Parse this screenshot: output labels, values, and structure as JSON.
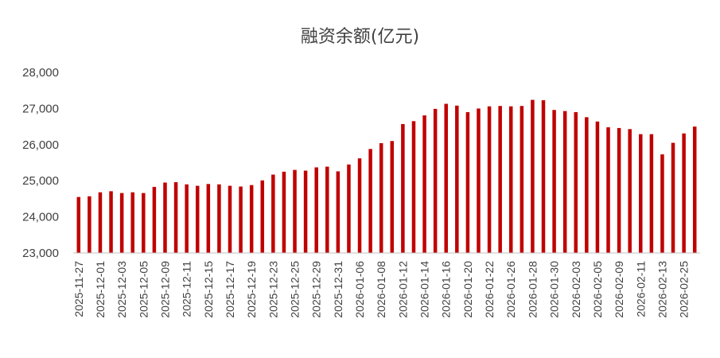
{
  "chart_data": {
    "type": "bar",
    "title": "融资余额(亿元)",
    "xlabel": "",
    "ylabel": "",
    "ylim": [
      23000,
      28000
    ],
    "yticks": [
      "23,000",
      "24,000",
      "25,000",
      "26,000",
      "27,000",
      "28,000"
    ],
    "bar_color": "#C00000",
    "grid": false,
    "legend": "none",
    "x_tick_labels": [
      "2025-11-27",
      "2025-12-01",
      "2025-12-03",
      "2025-12-05",
      "2025-12-09",
      "2025-12-11",
      "2025-12-15",
      "2025-12-17",
      "2025-12-19",
      "2025-12-23",
      "2025-12-25",
      "2025-12-29",
      "2025-12-31",
      "2026-01-06",
      "2026-01-08",
      "2026-01-12",
      "2026-01-14",
      "2026-01-16",
      "2026-01-20",
      "2026-01-22",
      "2026-01-26",
      "2026-01-28",
      "2026-01-30",
      "2026-02-03",
      "2026-02-05",
      "2026-02-09",
      "2026-02-11",
      "2026-02-13",
      "2026-02-25"
    ],
    "values": [
      24550,
      24570,
      24680,
      24710,
      24660,
      24680,
      24660,
      24830,
      24950,
      24960,
      24900,
      24860,
      24910,
      24900,
      24860,
      24840,
      24880,
      25010,
      25170,
      25250,
      25300,
      25280,
      25370,
      25390,
      25260,
      25450,
      25620,
      25880,
      26040,
      26100,
      26570,
      26650,
      26810,
      26990,
      27130,
      27080,
      26900,
      27000,
      27060,
      27070,
      27060,
      27070,
      27240,
      27230,
      26960,
      26930,
      26900,
      26760,
      26640,
      26480,
      26460,
      26430,
      26290,
      26290,
      25730,
      26050,
      26310,
      26500
    ]
  }
}
